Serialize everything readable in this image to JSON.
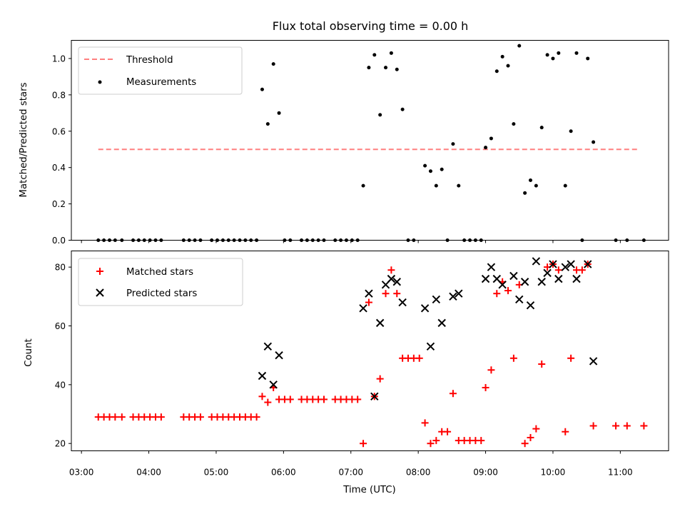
{
  "chart_data": [
    {
      "type": "scatter",
      "title": "Flux total observing time = 0.00 h",
      "xlabel": "",
      "ylabel": "Matched/Predicted stars",
      "xlim": [
        "02:51",
        "11:43"
      ],
      "ylim": [
        0,
        1.1
      ],
      "yticks": [
        "0.0",
        "0.2",
        "0.4",
        "0.6",
        "0.8",
        "1.0"
      ],
      "legend_position": "top-left",
      "threshold": {
        "name": "Threshold",
        "value": 0.5,
        "x": [
          "03:15",
          "11:16"
        ],
        "color": "#ff7f7f",
        "style": "dashed"
      },
      "series": [
        {
          "name": "Measurements",
          "color": "#000000",
          "marker": "dot",
          "points": [
            [
              "03:15",
              0
            ],
            [
              "03:20",
              0
            ],
            [
              "03:25",
              0
            ],
            [
              "03:30",
              0
            ],
            [
              "03:36",
              0
            ],
            [
              "03:46",
              0
            ],
            [
              "03:51",
              0
            ],
            [
              "03:56",
              0
            ],
            [
              "04:01",
              0
            ],
            [
              "04:06",
              0
            ],
            [
              "04:11",
              0
            ],
            [
              "04:31",
              0
            ],
            [
              "04:36",
              0
            ],
            [
              "04:41",
              0
            ],
            [
              "04:46",
              0
            ],
            [
              "04:56",
              0
            ],
            [
              "05:01",
              0
            ],
            [
              "05:06",
              0
            ],
            [
              "05:11",
              0
            ],
            [
              "05:16",
              0
            ],
            [
              "05:21",
              0
            ],
            [
              "05:26",
              0
            ],
            [
              "05:31",
              0
            ],
            [
              "05:36",
              0
            ],
            [
              "05:41",
              0.83
            ],
            [
              "05:46",
              0.64
            ],
            [
              "05:51",
              0.97
            ],
            [
              "05:56",
              0.7
            ],
            [
              "06:01",
              0
            ],
            [
              "06:06",
              0
            ],
            [
              "06:16",
              0
            ],
            [
              "06:21",
              0
            ],
            [
              "06:26",
              0
            ],
            [
              "06:31",
              0
            ],
            [
              "06:36",
              0
            ],
            [
              "06:46",
              0
            ],
            [
              "06:51",
              0
            ],
            [
              "06:56",
              0
            ],
            [
              "07:01",
              0
            ],
            [
              "07:06",
              0
            ],
            [
              "07:11",
              0.3
            ],
            [
              "07:16",
              0.95
            ],
            [
              "07:21",
              1.02
            ],
            [
              "07:26",
              0.69
            ],
            [
              "07:31",
              0.95
            ],
            [
              "07:36",
              1.03
            ],
            [
              "07:41",
              0.94
            ],
            [
              "07:46",
              0.72
            ],
            [
              "07:51",
              0
            ],
            [
              "07:56",
              0
            ],
            [
              "08:06",
              0.41
            ],
            [
              "08:11",
              0.38
            ],
            [
              "08:16",
              0.3
            ],
            [
              "08:21",
              0.39
            ],
            [
              "08:26",
              0
            ],
            [
              "08:31",
              0.53
            ],
            [
              "08:36",
              0.3
            ],
            [
              "08:41",
              0
            ],
            [
              "08:46",
              0
            ],
            [
              "08:51",
              0
            ],
            [
              "08:56",
              0
            ],
            [
              "09:00",
              0.51
            ],
            [
              "09:05",
              0.56
            ],
            [
              "09:10",
              0.93
            ],
            [
              "09:15",
              1.01
            ],
            [
              "09:20",
              0.96
            ],
            [
              "09:25",
              0.64
            ],
            [
              "09:30",
              1.07
            ],
            [
              "09:35",
              0.26
            ],
            [
              "09:40",
              0.33
            ],
            [
              "09:45",
              0.3
            ],
            [
              "09:50",
              0.62
            ],
            [
              "09:55",
              1.02
            ],
            [
              "10:00",
              1.0
            ],
            [
              "10:05",
              1.03
            ],
            [
              "10:11",
              0.3
            ],
            [
              "10:16",
              0.6
            ],
            [
              "10:21",
              1.03
            ],
            [
              "10:26",
              0
            ],
            [
              "10:31",
              1.0
            ],
            [
              "10:36",
              0.54
            ],
            [
              "10:56",
              0
            ],
            [
              "11:06",
              0
            ],
            [
              "11:21",
              0
            ]
          ]
        }
      ]
    },
    {
      "type": "scatter",
      "title": "",
      "xlabel": "Time (UTC)",
      "ylabel": "Count",
      "xlim": [
        "02:51",
        "11:43"
      ],
      "ylim": [
        17.5,
        85.5
      ],
      "yticks": [
        "20",
        "40",
        "60",
        "80"
      ],
      "xticks": [
        "03:00",
        "04:00",
        "05:00",
        "06:00",
        "07:00",
        "08:00",
        "09:00",
        "10:00",
        "11:00"
      ],
      "legend_position": "top-left",
      "series": [
        {
          "name": "Matched stars",
          "color": "#ff0000",
          "marker": "plus",
          "points": [
            [
              "03:15",
              29
            ],
            [
              "03:20",
              29
            ],
            [
              "03:25",
              29
            ],
            [
              "03:30",
              29
            ],
            [
              "03:36",
              29
            ],
            [
              "03:46",
              29
            ],
            [
              "03:51",
              29
            ],
            [
              "03:56",
              29
            ],
            [
              "04:01",
              29
            ],
            [
              "04:06",
              29
            ],
            [
              "04:11",
              29
            ],
            [
              "04:31",
              29
            ],
            [
              "04:36",
              29
            ],
            [
              "04:41",
              29
            ],
            [
              "04:46",
              29
            ],
            [
              "04:56",
              29
            ],
            [
              "05:01",
              29
            ],
            [
              "05:06",
              29
            ],
            [
              "05:11",
              29
            ],
            [
              "05:16",
              29
            ],
            [
              "05:21",
              29
            ],
            [
              "05:26",
              29
            ],
            [
              "05:31",
              29
            ],
            [
              "05:36",
              29
            ],
            [
              "05:41",
              36
            ],
            [
              "05:46",
              34
            ],
            [
              "05:51",
              39
            ],
            [
              "05:56",
              35
            ],
            [
              "06:01",
              35
            ],
            [
              "06:06",
              35
            ],
            [
              "06:16",
              35
            ],
            [
              "06:21",
              35
            ],
            [
              "06:26",
              35
            ],
            [
              "06:31",
              35
            ],
            [
              "06:36",
              35
            ],
            [
              "06:46",
              35
            ],
            [
              "06:51",
              35
            ],
            [
              "06:56",
              35
            ],
            [
              "07:01",
              35
            ],
            [
              "07:06",
              35
            ],
            [
              "07:11",
              20
            ],
            [
              "07:16",
              68
            ],
            [
              "07:21",
              36
            ],
            [
              "07:26",
              42
            ],
            [
              "07:31",
              71
            ],
            [
              "07:36",
              79
            ],
            [
              "07:41",
              71
            ],
            [
              "07:46",
              49
            ],
            [
              "07:51",
              49
            ],
            [
              "07:56",
              49
            ],
            [
              "08:01",
              49
            ],
            [
              "08:06",
              27
            ],
            [
              "08:11",
              20
            ],
            [
              "08:16",
              21
            ],
            [
              "08:21",
              24
            ],
            [
              "08:26",
              24
            ],
            [
              "08:31",
              37
            ],
            [
              "08:36",
              21
            ],
            [
              "08:41",
              21
            ],
            [
              "08:46",
              21
            ],
            [
              "08:51",
              21
            ],
            [
              "08:56",
              21
            ],
            [
              "09:00",
              39
            ],
            [
              "09:05",
              45
            ],
            [
              "09:10",
              71
            ],
            [
              "09:15",
              75
            ],
            [
              "09:20",
              72
            ],
            [
              "09:25",
              49
            ],
            [
              "09:30",
              74
            ],
            [
              "09:35",
              20
            ],
            [
              "09:40",
              22
            ],
            [
              "09:45",
              25
            ],
            [
              "09:50",
              47
            ],
            [
              "09:55",
              80
            ],
            [
              "10:00",
              81
            ],
            [
              "10:05",
              79
            ],
            [
              "10:11",
              24
            ],
            [
              "10:16",
              49
            ],
            [
              "10:21",
              79
            ],
            [
              "10:26",
              79
            ],
            [
              "10:31",
              81
            ],
            [
              "10:36",
              26
            ],
            [
              "10:56",
              26
            ],
            [
              "11:06",
              26
            ],
            [
              "11:21",
              26
            ]
          ]
        },
        {
          "name": "Predicted stars",
          "color": "#000000",
          "marker": "x",
          "points": [
            [
              "05:41",
              43
            ],
            [
              "05:46",
              53
            ],
            [
              "05:51",
              40
            ],
            [
              "05:56",
              50
            ],
            [
              "07:11",
              66
            ],
            [
              "07:16",
              71
            ],
            [
              "07:21",
              36
            ],
            [
              "07:26",
              61
            ],
            [
              "07:31",
              74
            ],
            [
              "07:36",
              76
            ],
            [
              "07:41",
              75
            ],
            [
              "07:46",
              68
            ],
            [
              "08:06",
              66
            ],
            [
              "08:11",
              53
            ],
            [
              "08:16",
              69
            ],
            [
              "08:21",
              61
            ],
            [
              "08:31",
              70
            ],
            [
              "08:36",
              71
            ],
            [
              "09:00",
              76
            ],
            [
              "09:05",
              80
            ],
            [
              "09:10",
              76
            ],
            [
              "09:15",
              74
            ],
            [
              "09:25",
              77
            ],
            [
              "09:30",
              69
            ],
            [
              "09:35",
              75
            ],
            [
              "09:40",
              67
            ],
            [
              "09:45",
              82
            ],
            [
              "09:50",
              75
            ],
            [
              "09:55",
              78
            ],
            [
              "10:00",
              81
            ],
            [
              "10:05",
              76
            ],
            [
              "10:11",
              80
            ],
            [
              "10:16",
              81
            ],
            [
              "10:21",
              76
            ],
            [
              "10:31",
              81
            ],
            [
              "10:36",
              48
            ]
          ]
        }
      ]
    }
  ]
}
